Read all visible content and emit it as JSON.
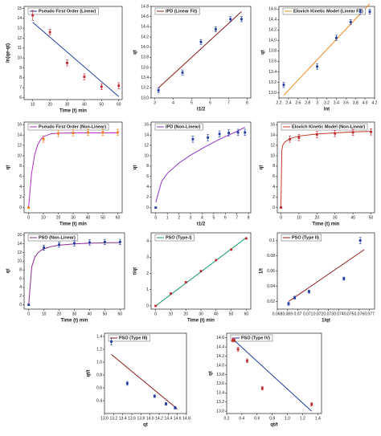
{
  "chart_data": [
    {
      "type": "scatter",
      "xlabel": "Time (t) min",
      "ylabel": "ln(qe-qt)",
      "xlim": [
        5,
        62
      ],
      "ylim": [
        5.8,
        15.2
      ],
      "xticks": [
        10,
        20,
        30,
        40,
        50,
        60
      ],
      "yticks": [
        6,
        7,
        8,
        9,
        10,
        11,
        12,
        13,
        14,
        15
      ],
      "series": [
        {
          "name": "Pseudo First Order (Linear)",
          "type": "line",
          "color": "#1f3aa0",
          "x": [
            10,
            60
          ],
          "values": [
            13.6,
            6.1
          ]
        },
        {
          "type": "points",
          "color": "#c0262d",
          "x": [
            10,
            20,
            30,
            40,
            50,
            60
          ],
          "values": [
            14.3,
            12.6,
            9.5,
            8.1,
            7.1,
            7.2
          ],
          "errors": [
            0.5,
            0.3,
            0.3,
            0.3,
            0.3,
            0.3
          ]
        }
      ]
    },
    {
      "type": "scatter",
      "xlabel": "t1/2",
      "ylabel": "qt",
      "xlim": [
        2.8,
        8.2
      ],
      "ylim": [
        13.0,
        14.8
      ],
      "xticks": [
        3,
        4,
        5,
        6,
        7,
        8
      ],
      "yticks": [
        {
          "value": 13.0,
          "label": "13.0"
        },
        13.2,
        13.4,
        13.6,
        13.8,
        {
          "value": 14.0,
          "label": "14.0"
        },
        14.2,
        14.4,
        14.6,
        14.8
      ],
      "series": [
        {
          "name": "IPD (Linear Fit)",
          "type": "line",
          "color": "#8b1a1a",
          "x": [
            3.2,
            7.7
          ],
          "values": [
            13.2,
            14.7
          ]
        },
        {
          "type": "points",
          "color": "#1f3aa0",
          "x": [
            3.2,
            4.5,
            5.5,
            6.3,
            7.1,
            7.7
          ],
          "values": [
            13.15,
            13.5,
            14.1,
            14.35,
            14.55,
            14.55
          ],
          "errors": [
            0.05,
            0.05,
            0.05,
            0.05,
            0.05,
            0.05
          ]
        }
      ]
    },
    {
      "type": "scatter",
      "xlabel": "lnt",
      "ylabel": "qt",
      "xlim": [
        2.2,
        4.2
      ],
      "ylim": [
        12.9,
        14.65
      ],
      "xticks": [
        2.2,
        2.4,
        2.6,
        2.8,
        3.0,
        3.2,
        3.4,
        3.6,
        3.8,
        {
          "value": 4.0,
          "label": "4.0"
        },
        4.2
      ],
      "yticks": [
        {
          "value": 13.0,
          "label": "13.0"
        },
        13.2,
        13.4,
        13.6,
        13.8,
        {
          "value": 14.0,
          "label": "14.0"
        },
        14.2,
        14.4,
        14.6
      ],
      "series": [
        {
          "name": "Elovich Kinetic Model (Linear Fit)",
          "type": "line",
          "color": "#f08a1e",
          "x": [
            2.3,
            4.1
          ],
          "values": [
            12.95,
            14.7
          ]
        },
        {
          "type": "points",
          "color": "#1f3aa0",
          "x": [
            2.3,
            3.0,
            3.4,
            3.7,
            3.9,
            4.1
          ],
          "values": [
            13.15,
            13.5,
            14.05,
            14.35,
            14.55,
            14.55
          ],
          "errors": [
            0.05,
            0.05,
            0.05,
            0.05,
            0.05,
            0.05
          ]
        }
      ]
    },
    {
      "type": "scatter",
      "xlabel": "Time (t) min",
      "ylabel": "qt",
      "xlim": [
        -3,
        63
      ],
      "ylim": [
        -1,
        16.5
      ],
      "xticks": [
        0,
        10,
        20,
        30,
        40,
        50,
        60
      ],
      "yticks": [
        0,
        2,
        4,
        6,
        8,
        10,
        12,
        14,
        16
      ],
      "series": [
        {
          "name": "Pseudo First Order (Non-Linear)",
          "type": "line",
          "color": "#b02fc0",
          "x": [
            0,
            2,
            4,
            6,
            8,
            10,
            15,
            20,
            30,
            40,
            50,
            60
          ],
          "values": [
            0,
            6.5,
            10.06,
            12.0,
            13.06,
            13.68,
            14.24,
            14.36,
            14.4,
            14.4,
            14.4,
            14.4
          ]
        },
        {
          "type": "points",
          "color": "#f07c1e",
          "x": [
            0,
            10,
            20,
            30,
            40,
            50,
            60
          ],
          "values": [
            0,
            13.2,
            14.3,
            14.4,
            14.5,
            14.5,
            14.5
          ],
          "errors": [
            0,
            0.6,
            0.6,
            0.6,
            0.6,
            0.6,
            0.6
          ]
        }
      ]
    },
    {
      "type": "scatter",
      "xlabel": "t1/2",
      "ylabel": "qt",
      "xlim": [
        -0.4,
        8.2
      ],
      "ylim": [
        -1,
        16.5
      ],
      "xticks": [
        0,
        1,
        2,
        3,
        4,
        5,
        6,
        7,
        8
      ],
      "yticks": [
        0,
        2,
        4,
        6,
        8,
        10,
        12,
        14,
        16
      ],
      "series": [
        {
          "name": "IPD (Non-Linear)",
          "type": "line",
          "color": "#8c35c9",
          "x": [
            0,
            0.5,
            1,
            2,
            3,
            4,
            5,
            6,
            7,
            7.7
          ],
          "values": [
            1.0,
            5.0,
            6.6,
            8.6,
            10.1,
            11.4,
            12.6,
            13.7,
            14.7,
            15.5
          ]
        },
        {
          "type": "points",
          "color": "#1f3aa0",
          "x": [
            0,
            3.2,
            4.5,
            5.5,
            6.3,
            7.1,
            7.7
          ],
          "values": [
            0,
            13.2,
            13.5,
            14.2,
            14.4,
            14.5,
            14.5
          ],
          "errors": [
            0,
            0.6,
            0.6,
            0.6,
            0.6,
            0.6,
            0.6
          ]
        }
      ]
    },
    {
      "type": "scatter",
      "xlabel": "Time (t) min",
      "ylabel": "qt",
      "xlim": [
        -2,
        52
      ],
      "ylim": [
        -1,
        16.5
      ],
      "xticks": [
        0,
        10,
        20,
        30,
        40,
        50
      ],
      "yticks": [
        0,
        2,
        4,
        6,
        8,
        10,
        12,
        14,
        16
      ],
      "series": [
        {
          "name": "Elovich Kinetic Model (Non-Linear)",
          "type": "line",
          "color": "#c43a22",
          "x": [
            0,
            0.5,
            1,
            2,
            5,
            10,
            20,
            30,
            40,
            50
          ],
          "values": [
            0,
            11,
            12,
            12.6,
            13.3,
            13.8,
            14.2,
            14.4,
            14.6,
            14.7
          ]
        },
        {
          "type": "points",
          "color": "#c0262d",
          "x": [
            0,
            5,
            10,
            20,
            30,
            40,
            50
          ],
          "values": [
            0,
            13.2,
            13.5,
            14.1,
            14.3,
            14.5,
            14.6
          ],
          "errors": [
            0,
            0.6,
            0.6,
            0.6,
            0.6,
            0.6,
            0.6
          ]
        }
      ]
    },
    {
      "type": "scatter",
      "xlabel": "Time (t) min",
      "ylabel": "qt",
      "xlim": [
        -3,
        63
      ],
      "ylim": [
        -1,
        16.5
      ],
      "xticks": [
        0,
        10,
        20,
        30,
        40,
        50,
        60
      ],
      "yticks": [
        0,
        2,
        4,
        6,
        8,
        10,
        12,
        14,
        16
      ],
      "series": [
        {
          "name": "PSO (Non-Linear)",
          "type": "line",
          "color": "#8e2a8e",
          "x": [
            0,
            2,
            4,
            6,
            8,
            10,
            15,
            20,
            30,
            40,
            50,
            60
          ],
          "values": [
            0,
            8.67,
            10.88,
            11.89,
            12.47,
            12.84,
            13.38,
            13.66,
            13.96,
            14.12,
            14.21,
            14.27
          ]
        },
        {
          "type": "points",
          "color": "#1f3aa0",
          "x": [
            0,
            10,
            20,
            30,
            40,
            50,
            60
          ],
          "values": [
            0,
            13.1,
            13.8,
            14.1,
            14.3,
            14.4,
            14.4
          ],
          "errors": [
            0,
            0.6,
            0.6,
            0.6,
            0.6,
            0.6,
            0.6
          ]
        }
      ]
    },
    {
      "type": "scatter",
      "xlabel": "Time (t) min",
      "ylabel": "t/qt",
      "xlim": [
        -3,
        63
      ],
      "ylim": [
        -0.2,
        4.5
      ],
      "xticks": [
        0,
        10,
        20,
        30,
        40,
        50,
        60
      ],
      "yticks": [
        0,
        1,
        2,
        3,
        4
      ],
      "series": [
        {
          "name": "PSO (Type-I)",
          "type": "line",
          "color": "#1a9a6a",
          "x": [
            0,
            60
          ],
          "values": [
            0,
            4.2
          ]
        },
        {
          "type": "points",
          "color": "#c0262d",
          "x": [
            0,
            10,
            20,
            30,
            40,
            50,
            60
          ],
          "values": [
            0,
            0.76,
            1.46,
            2.14,
            2.82,
            3.47,
            4.16
          ]
        }
      ]
    },
    {
      "type": "scatter",
      "xlabel": "1/qt",
      "ylabel": "1/t",
      "xlim": [
        0.068,
        0.0775
      ],
      "ylim": [
        0.01,
        0.11
      ],
      "xticks": [
        0.068,
        0.069,
        0.07,
        0.071,
        0.072,
        0.073,
        0.074,
        0.075,
        0.076,
        0.077
      ],
      "yticks": [
        0.02,
        0.04,
        0.06,
        0.08,
        0.1
      ],
      "series": [
        {
          "name": "PSO (Type II)",
          "type": "line",
          "color": "#8b1a1a",
          "x": [
            0.0691,
            0.0765
          ],
          "values": [
            0.02,
            0.088
          ]
        },
        {
          "type": "points",
          "color": "#1f3aa0",
          "x": [
            0.0691,
            0.0697,
            0.0711,
            0.0745,
            0.0761
          ],
          "values": [
            0.017,
            0.025,
            0.033,
            0.05,
            0.1
          ],
          "errors": [
            0.002,
            0.002,
            0.002,
            0.002,
            0.004
          ]
        }
      ]
    },
    {
      "type": "scatter",
      "xlabel": "qt",
      "ylabel": "qt/t",
      "xlim": [
        13.0,
        14.8
      ],
      "ylim": [
        0.2,
        1.45
      ],
      "xticks": [
        {
          "value": 13.0,
          "label": "13.0"
        },
        13.2,
        13.4,
        13.6,
        13.8,
        {
          "value": 14.0,
          "label": "14.0"
        },
        14.2,
        14.4,
        14.6,
        14.8
      ],
      "yticks": [
        0.4,
        0.6,
        0.8,
        {
          "value": 1.0,
          "label": "1.0"
        },
        1.2,
        1.4
      ],
      "series": [
        {
          "name": "PSO (Type III)",
          "type": "line",
          "color": "#8b1a1a",
          "x": [
            13.15,
            14.6
          ],
          "values": [
            1.12,
            0.27
          ]
        },
        {
          "type": "points",
          "color": "#1f3aa0",
          "x": [
            13.15,
            13.5,
            14.1,
            14.35,
            14.55
          ],
          "values": [
            1.32,
            0.67,
            0.47,
            0.35,
            0.29
          ],
          "errors": [
            0.05,
            0.03,
            0.02,
            0.02,
            0.02
          ]
        }
      ]
    },
    {
      "type": "scatter",
      "xlabel": "qt/t",
      "ylabel": "qt",
      "xlim": [
        0.2,
        1.45
      ],
      "ylim": [
        12.95,
        14.7
      ],
      "xticks": [
        0.2,
        0.4,
        0.6,
        0.8,
        {
          "value": 1.0,
          "label": "1.0"
        },
        1.2,
        1.4
      ],
      "yticks": [
        {
          "value": 13.0,
          "label": "13.0"
        },
        13.2,
        13.4,
        13.6,
        13.8,
        {
          "value": 14.0,
          "label": "14.0"
        },
        14.2,
        14.4,
        14.6
      ],
      "series": [
        {
          "name": "PSO (Type IV)",
          "type": "line",
          "color": "#1f3aa0",
          "x": [
            0.25,
            1.32
          ],
          "values": [
            14.62,
            13.0
          ]
        },
        {
          "type": "points",
          "color": "#c0262d",
          "x": [
            0.28,
            0.3,
            0.35,
            0.47,
            0.67,
            1.32
          ],
          "values": [
            14.55,
            14.55,
            14.35,
            14.1,
            13.5,
            13.15
          ],
          "errors": [
            0.04,
            0.04,
            0.04,
            0.04,
            0.04,
            0.04
          ]
        }
      ]
    }
  ]
}
